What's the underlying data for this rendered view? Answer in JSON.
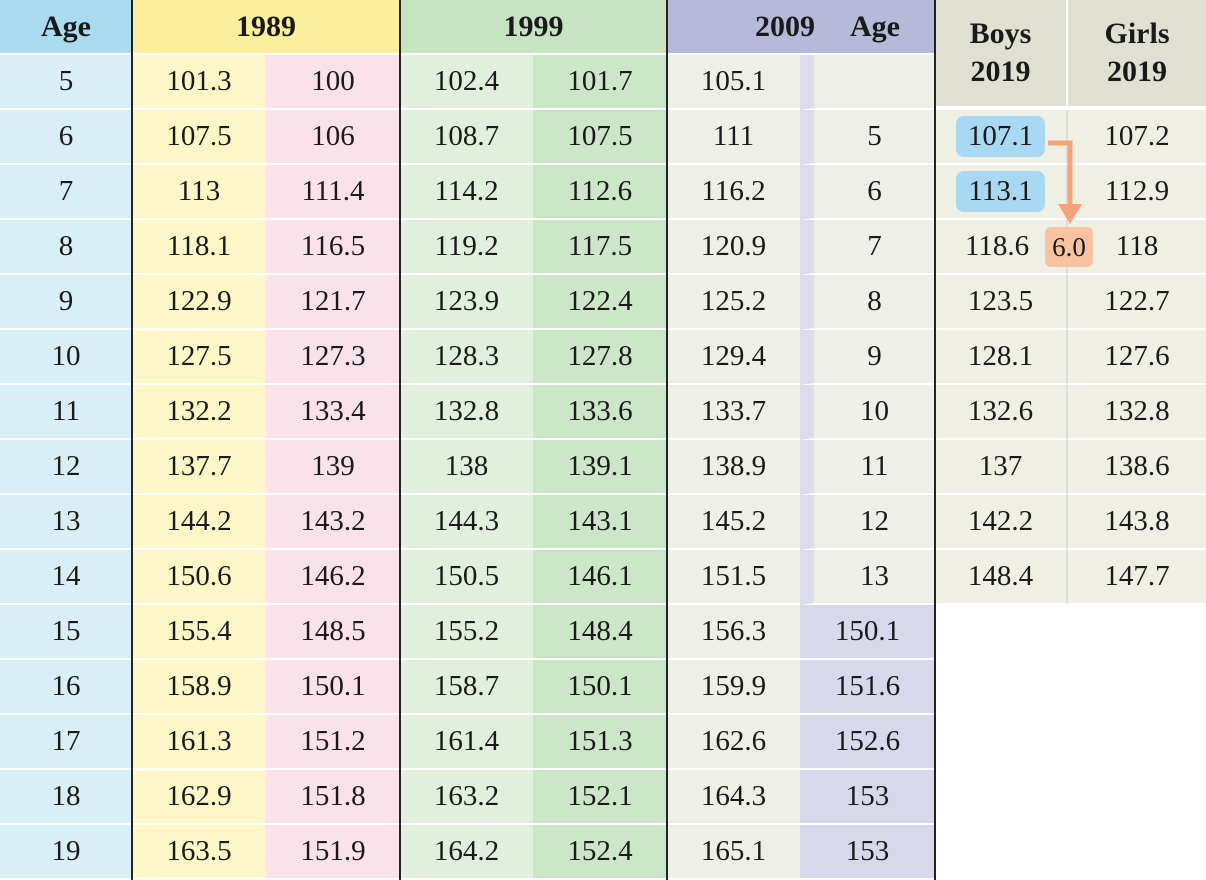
{
  "header": {
    "age": "Age",
    "y1989": "1989",
    "y1999": "1999",
    "y2009": "2009",
    "age_2019": "Age",
    "boys_2019": "Boys 2019",
    "girls_2019": "Girls 2019"
  },
  "table": {
    "rows": [
      [
        5,
        101.3,
        100,
        102.4,
        101.7,
        105.1
      ],
      [
        6,
        107.5,
        106,
        108.7,
        107.5,
        111
      ],
      [
        7,
        113,
        111.4,
        114.2,
        112.6,
        116.2
      ],
      [
        8,
        118.1,
        116.5,
        119.2,
        117.5,
        120.9
      ],
      [
        9,
        122.9,
        121.7,
        123.9,
        122.4,
        125.2
      ],
      [
        10,
        127.5,
        127.3,
        128.3,
        127.8,
        129.4
      ],
      [
        11,
        132.2,
        133.4,
        132.8,
        133.6,
        133.7
      ],
      [
        12,
        137.7,
        139,
        138,
        139.1,
        138.9
      ],
      [
        13,
        144.2,
        143.2,
        144.3,
        143.1,
        145.2
      ],
      [
        14,
        150.6,
        146.2,
        150.5,
        146.1,
        151.5
      ],
      [
        15,
        155.4,
        148.5,
        155.2,
        148.4,
        156.3
      ],
      [
        16,
        158.9,
        150.1,
        158.7,
        150.1,
        159.9
      ],
      [
        17,
        161.3,
        151.2,
        161.4,
        151.3,
        162.6
      ],
      [
        18,
        162.9,
        151.8,
        163.2,
        152.1,
        164.3
      ],
      [
        19,
        163.5,
        151.9,
        164.2,
        152.4,
        165.1
      ]
    ],
    "girls_2009_from_15": [
      150.1,
      151.6,
      152.6,
      153,
      153
    ]
  },
  "table_2019": {
    "rows": [
      [
        5,
        107.1,
        107.2
      ],
      [
        6,
        113.1,
        112.9
      ],
      [
        7,
        118.6,
        118
      ],
      [
        8,
        123.5,
        122.7
      ],
      [
        9,
        128.1,
        127.6
      ],
      [
        10,
        132.6,
        132.8
      ],
      [
        11,
        137,
        138.6
      ],
      [
        12,
        142.2,
        143.8
      ],
      [
        13,
        148.4,
        147.7
      ]
    ],
    "difference": "6.0"
  }
}
